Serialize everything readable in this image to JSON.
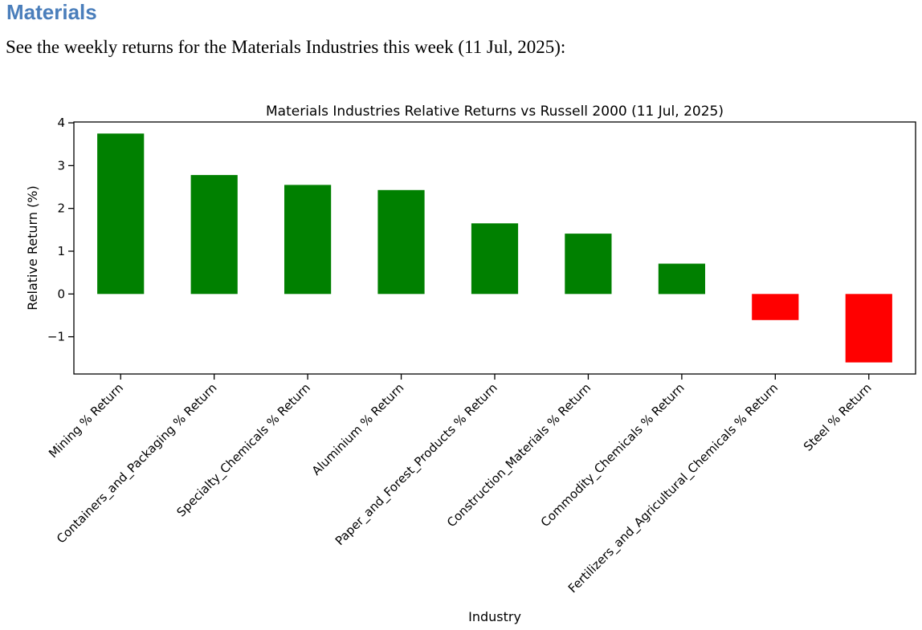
{
  "page": {
    "heading": "Materials",
    "heading_color": "#4a7ebb",
    "description": "See the weekly returns for the Materials Industries this week (11 Jul, 2025):"
  },
  "chart_data": {
    "type": "bar",
    "title": "Materials Industries Relative Returns vs Russell 2000 (11 Jul, 2025)",
    "xlabel": "Industry",
    "ylabel": "Relative Return (%)",
    "categories": [
      "Mining % Return",
      "Containers_and_Packaging % Return",
      "Specialty_Chemicals % Return",
      "Aluminium % Return",
      "Paper_and_Forest_Products % Return",
      "Construction_Materials % Return",
      "Commodity_Chemicals % Return",
      "Fertilizers_and_Agricultural_Chemicals % Return",
      "Steel % Return"
    ],
    "values": [
      3.75,
      2.78,
      2.55,
      2.43,
      1.65,
      1.41,
      0.71,
      -0.61,
      -1.6
    ],
    "positive_color": "#008000",
    "negative_color": "#ff0000",
    "axis_color": "#000000",
    "ylim": [
      -1.87,
      4.02
    ],
    "yticks": [
      -1,
      0,
      1,
      2,
      3,
      4
    ],
    "grid": false,
    "legend": null,
    "bar_width_fraction": 0.5,
    "x_tick_rotation_deg": 45
  }
}
